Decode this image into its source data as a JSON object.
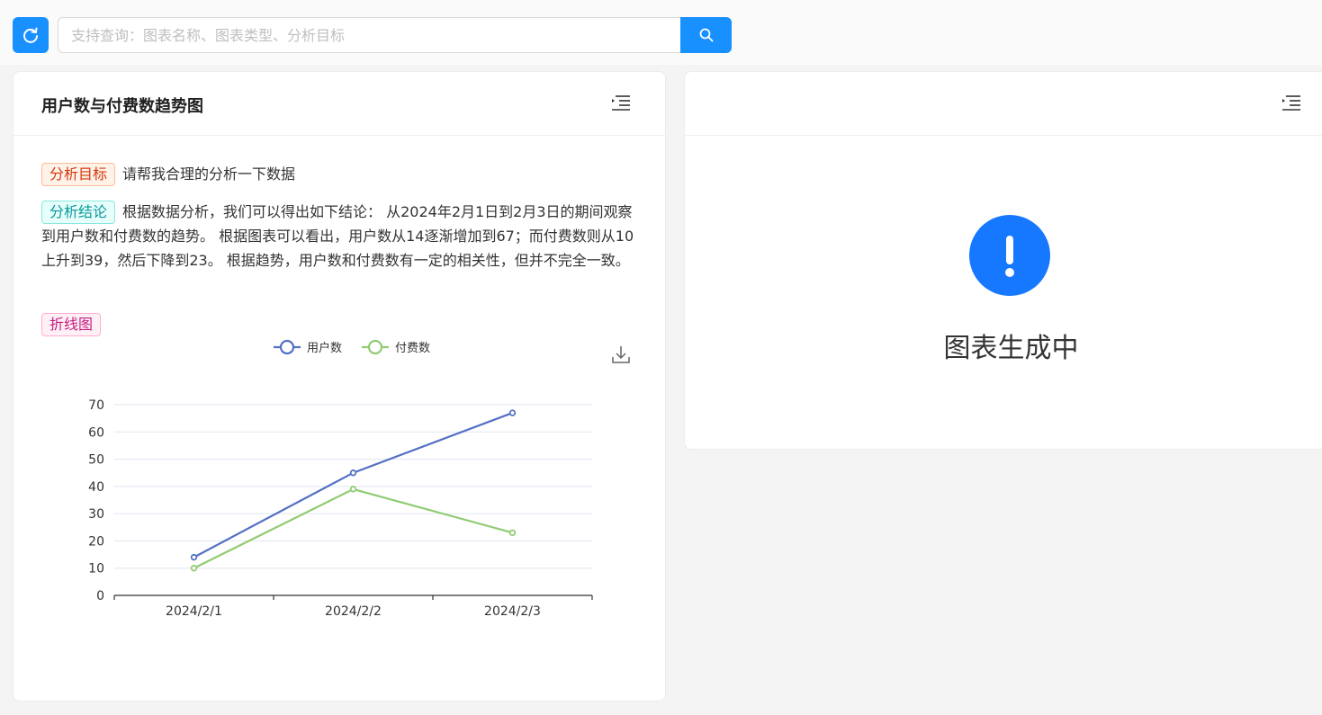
{
  "toolbar": {
    "search_placeholder": "支持查询：图表名称、图表类型、分析目标"
  },
  "colors": {
    "primary": "#1890ff",
    "series_users": "#5470c6",
    "series_paying": "#91cc75"
  },
  "chart_card": {
    "title": "用户数与付费数趋势图",
    "goal_tag": "分析目标",
    "goal_text": "请帮我合理的分析一下数据",
    "conclusion_tag": "分析结论",
    "conclusion_text": "根据数据分析，我们可以得出如下结论： 从2024年2月1日到2月3日的期间观察到用户数和付费数的趋势。 根据图表可以看出，用户数从14逐渐增加到67；而付费数则从10上升到39，然后下降到23。 根据趋势，用户数和付费数有一定的相关性，但并不完全一致。",
    "chart_type_tag": "折线图"
  },
  "chart_data": {
    "type": "line",
    "categories": [
      "2024/2/1",
      "2024/2/2",
      "2024/2/3"
    ],
    "series": [
      {
        "name": "用户数",
        "values": [
          14,
          45,
          67
        ],
        "color": "#5470c6"
      },
      {
        "name": "付费数",
        "values": [
          10,
          39,
          23
        ],
        "color": "#91cc75"
      }
    ],
    "ylim": [
      0,
      70
    ],
    "yticks": [
      0,
      10,
      20,
      30,
      40,
      50,
      60,
      70
    ],
    "legend": "top-center",
    "grid": true
  },
  "pending_card": {
    "status_text": "图表生成中"
  }
}
